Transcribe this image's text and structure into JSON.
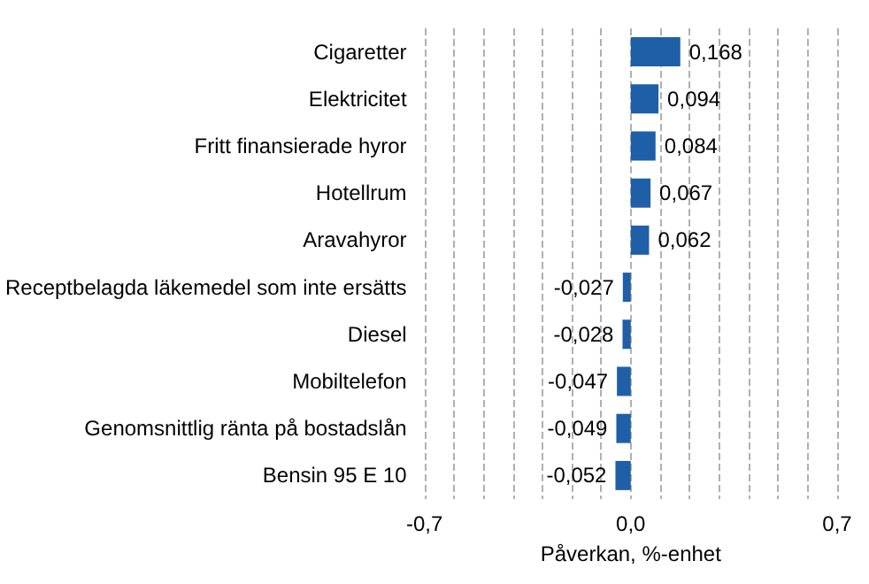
{
  "chart_data": {
    "type": "bar",
    "orientation": "horizontal",
    "xlabel": "Påverkan, %-enhet",
    "categories": [
      "Cigaretter",
      "Elektricitet",
      "Fritt finansierade hyror",
      "Hotellrum",
      "Aravahyror",
      "Receptbelagda läkemedel som inte ersätts",
      "Diesel",
      "Mobiltelefon",
      "Genomsnittlig ränta på bostadslån",
      "Bensin 95 E 10"
    ],
    "values": [
      0.168,
      0.094,
      0.084,
      0.067,
      0.062,
      -0.027,
      -0.028,
      -0.047,
      -0.049,
      -0.052
    ],
    "value_labels": [
      "0,168",
      "0,094",
      "0,084",
      "0,067",
      "0,062",
      "-0,027",
      "-0,028",
      "-0,047",
      "-0,049",
      "-0,052"
    ],
    "color": "#1f5fa8",
    "xlim": [
      -0.7,
      0.7
    ],
    "xticks": [
      {
        "value": -0.7,
        "label": "-0,7"
      },
      {
        "value": -0.6,
        "label": null
      },
      {
        "value": -0.5,
        "label": null
      },
      {
        "value": -0.4,
        "label": null
      },
      {
        "value": -0.3,
        "label": null
      },
      {
        "value": -0.2,
        "label": null
      },
      {
        "value": -0.1,
        "label": null
      },
      {
        "value": 0,
        "label": "0,0"
      },
      {
        "value": 0.1,
        "label": null
      },
      {
        "value": 0.2,
        "label": null
      },
      {
        "value": 0.3,
        "label": null
      },
      {
        "value": 0.4,
        "label": null
      },
      {
        "value": 0.5,
        "label": null
      },
      {
        "value": 0.6,
        "label": null
      },
      {
        "value": 0.7,
        "label": "0,7"
      }
    ],
    "grid": "x"
  }
}
